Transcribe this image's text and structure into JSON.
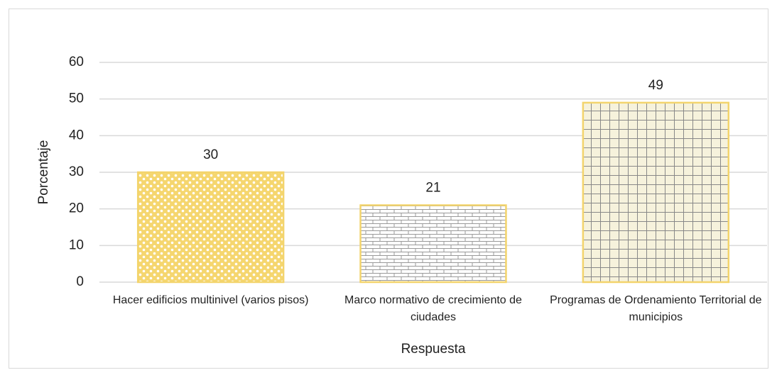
{
  "chart_data": {
    "type": "bar",
    "categories": [
      "Hacer edificios multinivel (varios pisos)",
      "Marco normativo de crecimiento de ciudades",
      "Programas de Ordenamiento Territorial de municipios"
    ],
    "values": [
      30,
      21,
      49
    ],
    "color": "#f3d46c",
    "x_label": "Respuesta",
    "y_label": "Porcentaje",
    "ylim": [
      0,
      60
    ],
    "yticks": [
      0,
      10,
      20,
      30,
      40,
      50,
      60
    ],
    "grid": true
  }
}
